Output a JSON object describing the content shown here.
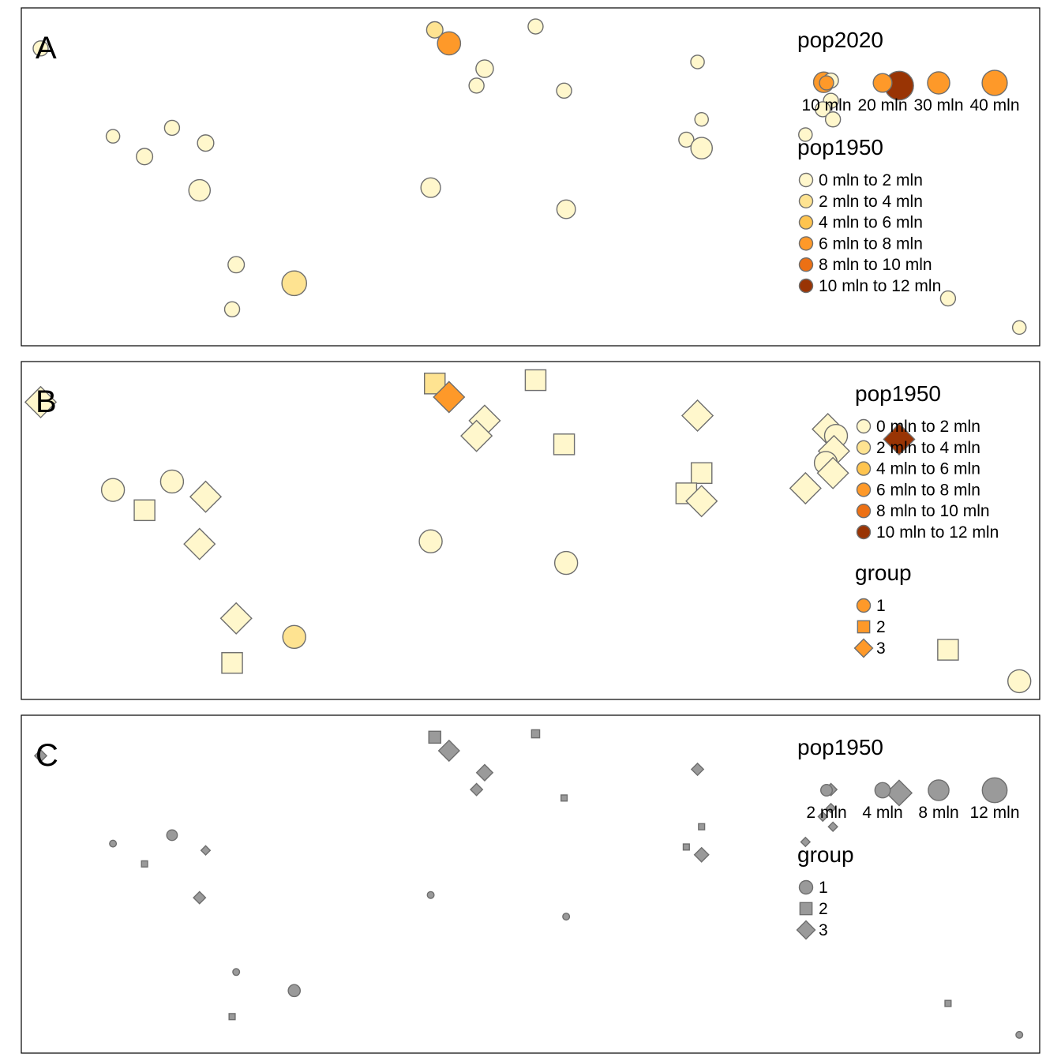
{
  "chart_data": [
    {
      "panel": "A",
      "type": "scatter",
      "title": "",
      "xlabel": "",
      "ylabel": "",
      "grid": false,
      "legend_placement": "top-right",
      "size_legend": {
        "title": "pop2020",
        "entries": [
          {
            "label": "10 mln",
            "value": 10
          },
          {
            "label": "20 mln",
            "value": 20
          },
          {
            "label": "30 mln",
            "value": 30
          },
          {
            "label": "40 mln",
            "value": 40
          }
        ]
      },
      "color_legend": {
        "title": "pop1950",
        "entries": [
          {
            "label": "0 mln to 2 mln",
            "color": "#fff7cc"
          },
          {
            "label": "2 mln to 4 mln",
            "color": "#fee391"
          },
          {
            "label": "4 mln to 6 mln",
            "color": "#fec44f"
          },
          {
            "label": "6 mln to 8 mln",
            "color": "#fe9929"
          },
          {
            "label": "8 mln to 10 mln",
            "color": "#ec7014"
          },
          {
            "label": "10 mln to 12 mln",
            "color": "#993404"
          }
        ]
      },
      "points": [
        {
          "x": 0.019,
          "y": 0.88,
          "size": 4,
          "color": "#fff7cc"
        },
        {
          "x": 0.406,
          "y": 0.935,
          "size": 5,
          "color": "#fee391"
        },
        {
          "x": 0.42,
          "y": 0.895,
          "size": 12,
          "color": "#fe9929"
        },
        {
          "x": 0.505,
          "y": 0.945,
          "size": 4,
          "color": "#fff7cc"
        },
        {
          "x": 0.455,
          "y": 0.82,
          "size": 6,
          "color": "#fff7cc"
        },
        {
          "x": 0.447,
          "y": 0.77,
          "size": 4,
          "color": "#fff7cc"
        },
        {
          "x": 0.533,
          "y": 0.755,
          "size": 4,
          "color": "#fff7cc"
        },
        {
          "x": 0.664,
          "y": 0.84,
          "size": 3,
          "color": "#fff7cc"
        },
        {
          "x": 0.668,
          "y": 0.67,
          "size": 3,
          "color": "#fff7cc"
        },
        {
          "x": 0.653,
          "y": 0.61,
          "size": 4,
          "color": "#fff7cc"
        },
        {
          "x": 0.668,
          "y": 0.585,
          "size": 10,
          "color": "#fff7cc"
        },
        {
          "x": 0.09,
          "y": 0.62,
          "size": 3,
          "color": "#fff7cc"
        },
        {
          "x": 0.148,
          "y": 0.645,
          "size": 4,
          "color": "#fff7cc"
        },
        {
          "x": 0.121,
          "y": 0.56,
          "size": 5,
          "color": "#fff7cc"
        },
        {
          "x": 0.181,
          "y": 0.6,
          "size": 5,
          "color": "#fff7cc"
        },
        {
          "x": 0.175,
          "y": 0.46,
          "size": 10,
          "color": "#fff7cc"
        },
        {
          "x": 0.402,
          "y": 0.468,
          "size": 8,
          "color": "#fff7cc"
        },
        {
          "x": 0.535,
          "y": 0.404,
          "size": 7,
          "color": "#fff7cc"
        },
        {
          "x": 0.211,
          "y": 0.24,
          "size": 5,
          "color": "#fff7cc"
        },
        {
          "x": 0.268,
          "y": 0.185,
          "size": 14,
          "color": "#fee391"
        },
        {
          "x": 0.207,
          "y": 0.108,
          "size": 4,
          "color": "#fff7cc"
        },
        {
          "x": 0.788,
          "y": 0.78,
          "size": 9,
          "color": "#fe9929"
        },
        {
          "x": 0.795,
          "y": 0.785,
          "size": 4,
          "color": "#fff7cc"
        },
        {
          "x": 0.862,
          "y": 0.77,
          "size": 20,
          "color": "#993404"
        },
        {
          "x": 0.795,
          "y": 0.725,
          "size": 4,
          "color": "#fff7cc"
        },
        {
          "x": 0.787,
          "y": 0.7,
          "size": 4,
          "color": "#fff7cc"
        },
        {
          "x": 0.797,
          "y": 0.67,
          "size": 4,
          "color": "#fff7cc"
        },
        {
          "x": 0.77,
          "y": 0.625,
          "size": 3,
          "color": "#fff7cc"
        },
        {
          "x": 0.91,
          "y": 0.14,
          "size": 4,
          "color": "#fff7cc"
        },
        {
          "x": 0.98,
          "y": 0.054,
          "size": 3,
          "color": "#fff7cc"
        }
      ]
    },
    {
      "panel": "B",
      "type": "scatter",
      "title": "",
      "xlabel": "",
      "ylabel": "",
      "grid": false,
      "legend_placement": "top-right",
      "color_legend": {
        "title": "pop1950",
        "entries": [
          {
            "label": "0 mln to 2 mln",
            "color": "#fff7cc"
          },
          {
            "label": "2 mln to 4 mln",
            "color": "#fee391"
          },
          {
            "label": "4 mln to 6 mln",
            "color": "#fec44f"
          },
          {
            "label": "6 mln to 8 mln",
            "color": "#fe9929"
          },
          {
            "label": "8 mln to 10 mln",
            "color": "#ec7014"
          },
          {
            "label": "10 mln to 12 mln",
            "color": "#993404"
          }
        ]
      },
      "shape_legend": {
        "title": "group",
        "entries": [
          {
            "label": "1",
            "shape": "circle"
          },
          {
            "label": "2",
            "shape": "square"
          },
          {
            "label": "3",
            "shape": "diamond"
          }
        ]
      },
      "points": [
        {
          "x": 0.019,
          "y": 0.88,
          "shape": "diamond",
          "color": "#fff7cc"
        },
        {
          "x": 0.406,
          "y": 0.935,
          "shape": "square",
          "color": "#fee391"
        },
        {
          "x": 0.42,
          "y": 0.895,
          "shape": "diamond",
          "color": "#fe9929"
        },
        {
          "x": 0.505,
          "y": 0.945,
          "shape": "square",
          "color": "#fff7cc"
        },
        {
          "x": 0.455,
          "y": 0.825,
          "shape": "diamond",
          "color": "#fff7cc"
        },
        {
          "x": 0.447,
          "y": 0.78,
          "shape": "diamond",
          "color": "#fff7cc"
        },
        {
          "x": 0.533,
          "y": 0.755,
          "shape": "square",
          "color": "#fff7cc"
        },
        {
          "x": 0.664,
          "y": 0.84,
          "shape": "diamond",
          "color": "#fff7cc"
        },
        {
          "x": 0.668,
          "y": 0.67,
          "shape": "square",
          "color": "#fff7cc"
        },
        {
          "x": 0.653,
          "y": 0.61,
          "shape": "square",
          "color": "#fff7cc"
        },
        {
          "x": 0.668,
          "y": 0.587,
          "shape": "diamond",
          "color": "#fff7cc"
        },
        {
          "x": 0.09,
          "y": 0.62,
          "shape": "circle",
          "color": "#fff7cc"
        },
        {
          "x": 0.148,
          "y": 0.645,
          "shape": "circle",
          "color": "#fff7cc"
        },
        {
          "x": 0.121,
          "y": 0.56,
          "shape": "square",
          "color": "#fff7cc"
        },
        {
          "x": 0.181,
          "y": 0.6,
          "shape": "diamond",
          "color": "#fff7cc"
        },
        {
          "x": 0.175,
          "y": 0.46,
          "shape": "diamond",
          "color": "#fff7cc"
        },
        {
          "x": 0.402,
          "y": 0.468,
          "shape": "circle",
          "color": "#fff7cc"
        },
        {
          "x": 0.535,
          "y": 0.404,
          "shape": "circle",
          "color": "#fff7cc"
        },
        {
          "x": 0.211,
          "y": 0.24,
          "shape": "diamond",
          "color": "#fff7cc"
        },
        {
          "x": 0.268,
          "y": 0.185,
          "shape": "circle",
          "color": "#fee391"
        },
        {
          "x": 0.207,
          "y": 0.108,
          "shape": "square",
          "color": "#fff7cc"
        },
        {
          "x": 0.792,
          "y": 0.8,
          "shape": "diamond",
          "color": "#fff7cc"
        },
        {
          "x": 0.8,
          "y": 0.78,
          "shape": "circle",
          "color": "#fff7cc"
        },
        {
          "x": 0.862,
          "y": 0.77,
          "shape": "diamond",
          "color": "#993404"
        },
        {
          "x": 0.798,
          "y": 0.735,
          "shape": "diamond",
          "color": "#fff7cc"
        },
        {
          "x": 0.79,
          "y": 0.7,
          "shape": "circle",
          "color": "#fff7cc"
        },
        {
          "x": 0.797,
          "y": 0.67,
          "shape": "diamond",
          "color": "#fff7cc"
        },
        {
          "x": 0.77,
          "y": 0.625,
          "shape": "diamond",
          "color": "#fff7cc"
        },
        {
          "x": 0.91,
          "y": 0.147,
          "shape": "square",
          "color": "#fff7cc"
        },
        {
          "x": 0.98,
          "y": 0.054,
          "shape": "circle",
          "color": "#fff7cc"
        }
      ]
    },
    {
      "panel": "C",
      "type": "scatter",
      "title": "",
      "xlabel": "",
      "ylabel": "",
      "grid": false,
      "legend_placement": "top-right",
      "point_color": "#9a9a9a",
      "size_legend": {
        "title": "pop1950",
        "entries": [
          {
            "label": "2 mln",
            "value": 2
          },
          {
            "label": "4 mln",
            "value": 4
          },
          {
            "label": "8 mln",
            "value": 8
          },
          {
            "label": "12 mln",
            "value": 12
          }
        ]
      },
      "shape_legend": {
        "title": "group",
        "entries": [
          {
            "label": "1",
            "shape": "circle"
          },
          {
            "label": "2",
            "shape": "square"
          },
          {
            "label": "3",
            "shape": "diamond"
          }
        ]
      },
      "points": [
        {
          "x": 0.019,
          "y": 0.88,
          "shape": "diamond",
          "size": 2
        },
        {
          "x": 0.406,
          "y": 0.935,
          "shape": "square",
          "size": 5
        },
        {
          "x": 0.42,
          "y": 0.895,
          "shape": "diamond",
          "size": 7
        },
        {
          "x": 0.505,
          "y": 0.945,
          "shape": "square",
          "size": 2
        },
        {
          "x": 0.455,
          "y": 0.83,
          "shape": "diamond",
          "size": 4
        },
        {
          "x": 0.447,
          "y": 0.78,
          "shape": "diamond",
          "size": 2
        },
        {
          "x": 0.533,
          "y": 0.755,
          "shape": "square",
          "size": 1
        },
        {
          "x": 0.664,
          "y": 0.84,
          "shape": "diamond",
          "size": 2
        },
        {
          "x": 0.668,
          "y": 0.67,
          "shape": "square",
          "size": 1
        },
        {
          "x": 0.653,
          "y": 0.61,
          "shape": "square",
          "size": 1
        },
        {
          "x": 0.668,
          "y": 0.587,
          "shape": "diamond",
          "size": 3
        },
        {
          "x": 0.09,
          "y": 0.62,
          "shape": "circle",
          "size": 1
        },
        {
          "x": 0.148,
          "y": 0.645,
          "shape": "circle",
          "size": 3
        },
        {
          "x": 0.121,
          "y": 0.56,
          "shape": "square",
          "size": 1
        },
        {
          "x": 0.181,
          "y": 0.6,
          "shape": "diamond",
          "size": 1
        },
        {
          "x": 0.175,
          "y": 0.46,
          "shape": "diamond",
          "size": 2
        },
        {
          "x": 0.402,
          "y": 0.468,
          "shape": "circle",
          "size": 1
        },
        {
          "x": 0.535,
          "y": 0.404,
          "shape": "circle",
          "size": 1
        },
        {
          "x": 0.211,
          "y": 0.24,
          "shape": "circle",
          "size": 1
        },
        {
          "x": 0.268,
          "y": 0.185,
          "shape": "circle",
          "size": 4
        },
        {
          "x": 0.207,
          "y": 0.108,
          "shape": "square",
          "size": 1
        },
        {
          "x": 0.795,
          "y": 0.78,
          "shape": "diamond",
          "size": 2
        },
        {
          "x": 0.862,
          "y": 0.77,
          "shape": "diamond",
          "size": 11
        },
        {
          "x": 0.795,
          "y": 0.725,
          "shape": "diamond",
          "size": 1
        },
        {
          "x": 0.787,
          "y": 0.7,
          "shape": "diamond",
          "size": 1
        },
        {
          "x": 0.797,
          "y": 0.67,
          "shape": "diamond",
          "size": 1
        },
        {
          "x": 0.77,
          "y": 0.625,
          "shape": "diamond",
          "size": 1
        },
        {
          "x": 0.91,
          "y": 0.147,
          "shape": "square",
          "size": 1
        },
        {
          "x": 0.98,
          "y": 0.054,
          "shape": "circle",
          "size": 1
        }
      ]
    }
  ]
}
